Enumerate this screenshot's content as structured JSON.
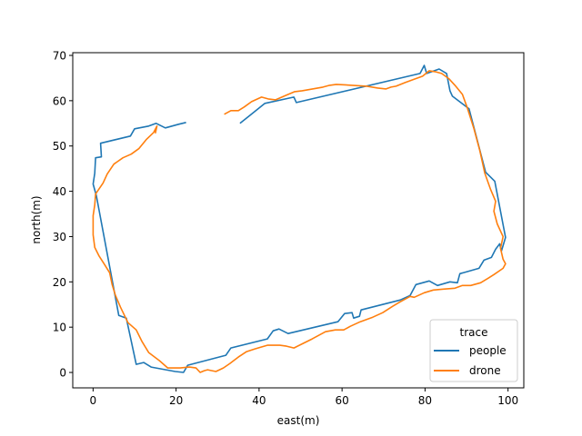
{
  "chart_data": {
    "type": "line",
    "xlabel": "east(m)",
    "ylabel": "north(m)",
    "xlim": [
      -4.9,
      103.8
    ],
    "ylim": [
      -3.4,
      70.6
    ],
    "xticks": [
      0,
      20,
      40,
      60,
      80,
      100
    ],
    "yticks": [
      0,
      10,
      20,
      30,
      40,
      50,
      60,
      70
    ],
    "grid": false,
    "legend": {
      "title": "trace",
      "placement": "lower-right"
    },
    "series": [
      {
        "name": "people",
        "color": "#1f77b4",
        "points": [
          [
            22.4,
            55.2
          ],
          [
            20.6,
            54.8
          ],
          [
            17.4,
            54.0
          ],
          [
            15.2,
            55.0
          ],
          [
            13.4,
            54.4
          ],
          [
            10.0,
            53.8
          ],
          [
            9.0,
            52.2
          ],
          [
            1.8,
            50.6
          ],
          [
            2.0,
            47.6
          ],
          [
            0.6,
            47.4
          ],
          [
            0.4,
            44.0
          ],
          [
            0.0,
            41.6
          ],
          [
            0.8,
            39.0
          ],
          [
            6.2,
            12.6
          ],
          [
            8.0,
            12.0
          ],
          [
            10.4,
            1.8
          ],
          [
            12.2,
            2.2
          ],
          [
            14.0,
            1.2
          ],
          [
            19.8,
            0.2
          ],
          [
            21.8,
            0.0
          ],
          [
            22.8,
            1.6
          ],
          [
            32.0,
            3.8
          ],
          [
            33.2,
            5.4
          ],
          [
            42.0,
            7.4
          ],
          [
            43.4,
            9.2
          ],
          [
            44.8,
            9.6
          ],
          [
            47.0,
            8.6
          ],
          [
            59.0,
            11.2
          ],
          [
            60.6,
            13.0
          ],
          [
            62.4,
            13.2
          ],
          [
            62.8,
            12.0
          ],
          [
            64.2,
            12.4
          ],
          [
            64.6,
            13.8
          ],
          [
            74.0,
            16.0
          ],
          [
            76.4,
            17.0
          ],
          [
            77.8,
            19.4
          ],
          [
            81.0,
            20.2
          ],
          [
            83.0,
            19.2
          ],
          [
            86.0,
            20.0
          ],
          [
            87.8,
            19.8
          ],
          [
            88.4,
            21.8
          ],
          [
            93.0,
            23.0
          ],
          [
            94.2,
            24.8
          ],
          [
            96.0,
            25.4
          ],
          [
            97.0,
            27.2
          ],
          [
            98.0,
            28.4
          ],
          [
            98.4,
            26.8
          ],
          [
            99.4,
            29.8
          ],
          [
            96.8,
            42.2
          ],
          [
            94.6,
            44.2
          ],
          [
            90.6,
            58.2
          ],
          [
            86.6,
            61.0
          ],
          [
            86.0,
            62.2
          ],
          [
            85.2,
            66.0
          ],
          [
            83.4,
            67.0
          ],
          [
            80.4,
            66.0
          ],
          [
            79.8,
            67.8
          ],
          [
            78.8,
            66.0
          ],
          [
            49.0,
            59.6
          ],
          [
            48.4,
            60.8
          ],
          [
            41.4,
            59.4
          ],
          [
            35.4,
            55.0
          ]
        ]
      },
      {
        "name": "drone",
        "color": "#ff7f0e",
        "points": [
          [
            31.6,
            57.0
          ],
          [
            33.2,
            57.8
          ],
          [
            35.0,
            57.8
          ],
          [
            36.4,
            58.6
          ],
          [
            38.2,
            59.8
          ],
          [
            40.6,
            60.8
          ],
          [
            42.2,
            60.4
          ],
          [
            44.0,
            60.2
          ],
          [
            46.0,
            61.0
          ],
          [
            48.6,
            62.0
          ],
          [
            50.4,
            62.2
          ],
          [
            55.4,
            63.0
          ],
          [
            57.0,
            63.4
          ],
          [
            58.6,
            63.6
          ],
          [
            62.4,
            63.4
          ],
          [
            66.0,
            63.2
          ],
          [
            68.6,
            62.8
          ],
          [
            70.6,
            62.6
          ],
          [
            71.8,
            63.0
          ],
          [
            73.0,
            63.2
          ],
          [
            75.2,
            64.0
          ],
          [
            77.6,
            64.8
          ],
          [
            79.4,
            65.4
          ],
          [
            81.0,
            66.6
          ],
          [
            82.4,
            66.4
          ],
          [
            84.0,
            66.0
          ],
          [
            85.8,
            64.8
          ],
          [
            87.2,
            63.4
          ],
          [
            89.0,
            61.4
          ],
          [
            90.2,
            58.4
          ],
          [
            91.8,
            53.8
          ],
          [
            93.2,
            49.0
          ],
          [
            94.4,
            44.0
          ],
          [
            95.8,
            40.4
          ],
          [
            97.0,
            37.8
          ],
          [
            96.6,
            35.6
          ],
          [
            97.4,
            32.8
          ],
          [
            98.8,
            30.0
          ],
          [
            98.2,
            27.4
          ],
          [
            98.8,
            25.0
          ],
          [
            99.4,
            24.0
          ],
          [
            98.8,
            23.0
          ],
          [
            96.6,
            21.6
          ],
          [
            95.2,
            20.8
          ],
          [
            93.4,
            19.8
          ],
          [
            91.0,
            19.2
          ],
          [
            89.0,
            19.2
          ],
          [
            87.2,
            18.6
          ],
          [
            84.4,
            18.4
          ],
          [
            82.0,
            18.2
          ],
          [
            79.8,
            17.6
          ],
          [
            77.4,
            16.6
          ],
          [
            76.4,
            16.8
          ],
          [
            74.0,
            15.6
          ],
          [
            72.2,
            14.6
          ],
          [
            69.8,
            13.2
          ],
          [
            67.4,
            12.2
          ],
          [
            64.4,
            11.2
          ],
          [
            62.0,
            10.2
          ],
          [
            60.4,
            9.4
          ],
          [
            58.4,
            9.4
          ],
          [
            56.0,
            9.0
          ],
          [
            52.8,
            7.4
          ],
          [
            50.6,
            6.4
          ],
          [
            48.4,
            5.4
          ],
          [
            46.6,
            5.8
          ],
          [
            45.0,
            6.0
          ],
          [
            42.0,
            6.0
          ],
          [
            39.0,
            5.2
          ],
          [
            37.0,
            4.6
          ],
          [
            35.0,
            3.4
          ],
          [
            33.0,
            2.0
          ],
          [
            31.4,
            1.0
          ],
          [
            29.6,
            0.2
          ],
          [
            27.6,
            0.6
          ],
          [
            26.8,
            0.4
          ],
          [
            25.8,
            0.0
          ],
          [
            24.8,
            1.0
          ],
          [
            23.2,
            1.2
          ],
          [
            21.0,
            1.0
          ],
          [
            18.0,
            1.0
          ],
          [
            16.0,
            2.6
          ],
          [
            13.4,
            4.4
          ],
          [
            11.8,
            6.8
          ],
          [
            10.4,
            9.4
          ],
          [
            8.4,
            11.0
          ],
          [
            6.6,
            14.4
          ],
          [
            5.4,
            17.0
          ],
          [
            4.6,
            19.4
          ],
          [
            4.0,
            22.0
          ],
          [
            2.8,
            23.8
          ],
          [
            1.4,
            25.8
          ],
          [
            0.4,
            27.6
          ],
          [
            0.0,
            30.4
          ],
          [
            0.0,
            34.6
          ],
          [
            0.4,
            37.0
          ],
          [
            0.6,
            39.4
          ],
          [
            2.4,
            41.8
          ],
          [
            3.4,
            43.8
          ],
          [
            5.0,
            46.0
          ],
          [
            7.2,
            47.4
          ],
          [
            9.2,
            48.2
          ],
          [
            11.0,
            49.4
          ],
          [
            12.8,
            51.4
          ],
          [
            14.6,
            53.0
          ],
          [
            15.4,
            54.4
          ],
          [
            15.0,
            52.8
          ]
        ]
      }
    ]
  }
}
